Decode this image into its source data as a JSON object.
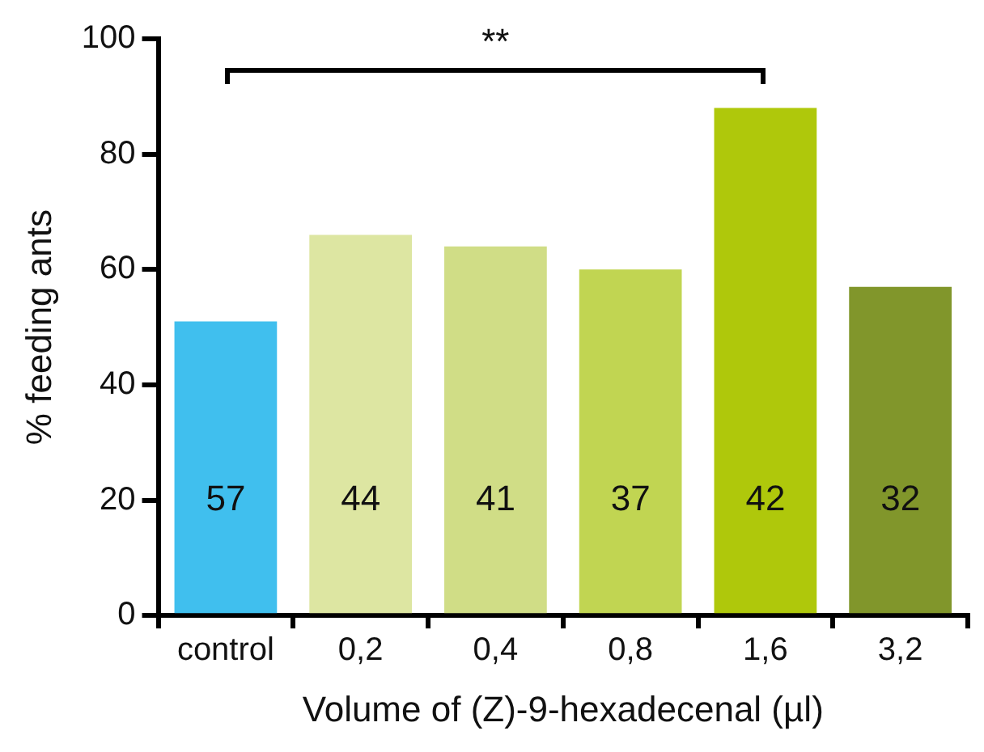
{
  "chart_data": {
    "type": "bar",
    "xlabel": "Volume of (Z)-9-hexadecenal (µl)",
    "ylabel": "% feeding ants",
    "categories": [
      "control",
      "0,2",
      "0,4",
      "0,8",
      "1,6",
      "3,2"
    ],
    "values": [
      51,
      66,
      64,
      60,
      88,
      57
    ],
    "colors": [
      "#40bfee",
      "#dde6a2",
      "#d0dd86",
      "#c1d552",
      "#afc80b",
      "#81962b"
    ],
    "ylim": [
      0,
      100
    ],
    "yticks": [
      0,
      20,
      40,
      60,
      80,
      100
    ],
    "grid": false,
    "legend": false,
    "annotations": [
      "**",
      "57",
      "44",
      "41",
      "37",
      "42",
      "32"
    ]
  }
}
